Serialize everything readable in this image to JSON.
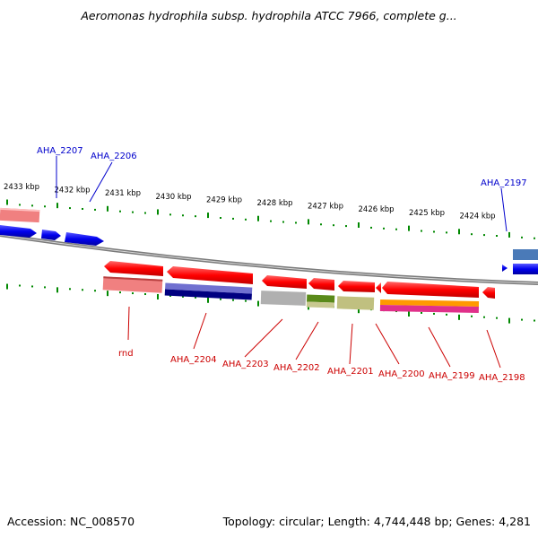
{
  "title": "Aeromonas hydrophila subsp. hydrophila ATCC 7966, complete g...",
  "footer": {
    "accession": "Accession: NC_008570",
    "summary": "Topology: circular; Length: 4,744,448 bp; Genes: 4,281"
  },
  "kbp_ticks": [
    "2433 kbp",
    "2432 kbp",
    "2431 kbp",
    "2430 kbp",
    "2429 kbp",
    "2428 kbp",
    "2427 kbp",
    "2426 kbp",
    "2425 kbp",
    "2424 kbp"
  ],
  "upper_gene_labels": [
    "AHA_2207",
    "AHA_2206",
    "AHA_2197"
  ],
  "lower_gene_labels": [
    "rnd",
    "AHA_2204",
    "AHA_2203",
    "AHA_2202",
    "AHA_2201",
    "AHA_2200",
    "AHA_2199",
    "AHA_2198"
  ],
  "colors": {
    "forward_gene": "#0000ee",
    "reverse_gene": "#ff0000",
    "upper_label": "#0000cc",
    "lower_label": "#cc0000",
    "tick": "#008800",
    "backbone": "#808080"
  }
}
